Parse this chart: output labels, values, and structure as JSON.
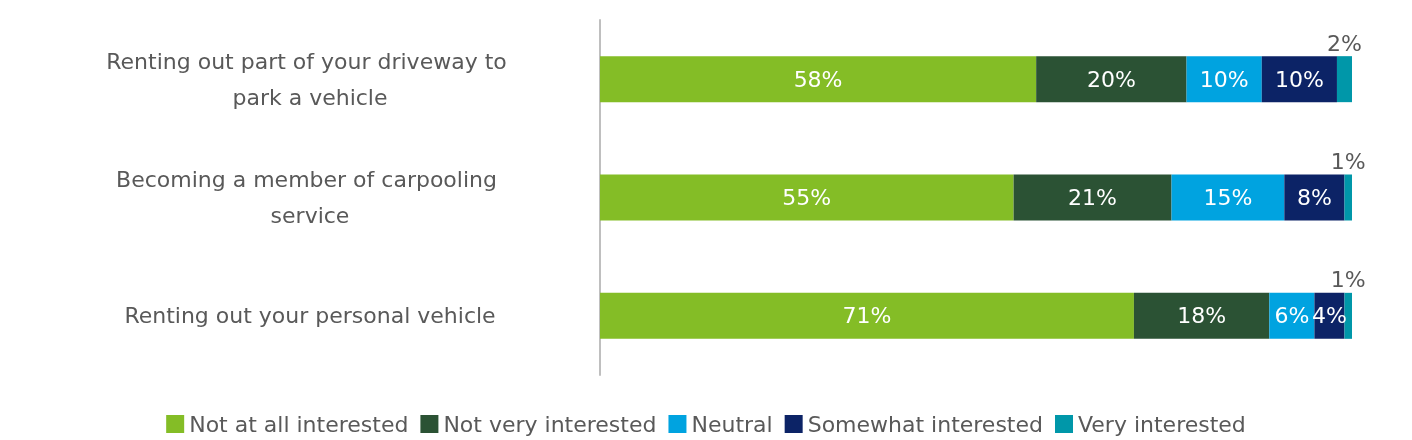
{
  "chart_data": {
    "type": "bar",
    "orientation": "horizontal",
    "stacked": true,
    "grid": false,
    "legend": "bottom",
    "tick_labels": "y",
    "categories": [
      "Renting out part of your driveway to park a vehicle",
      "Becoming a member of carpooling service",
      "Renting out your personal vehicle"
    ],
    "series": [
      {
        "name": "Not at all interested",
        "color": "#84bd26",
        "values": [
          58,
          55,
          71
        ],
        "value_labels": [
          "58%",
          "55%",
          "71%"
        ]
      },
      {
        "name": "Not very interested",
        "color": "#2b5234",
        "values": [
          20,
          21,
          18
        ],
        "value_labels": [
          "20%",
          "21%",
          "18%"
        ]
      },
      {
        "name": "Neutral",
        "color": "#00a3e0",
        "values": [
          10,
          15,
          6
        ],
        "value_labels": [
          "10%",
          "15%",
          "6%"
        ]
      },
      {
        "name": "Somewhat interested",
        "color": "#0c2366",
        "values": [
          10,
          8,
          4
        ],
        "value_labels": [
          "10%",
          "8%",
          "4%"
        ]
      },
      {
        "name": "Very interested",
        "color": "#0097a9",
        "values": [
          2,
          1,
          1
        ],
        "value_labels": [
          "2%",
          "1%",
          "1%"
        ]
      }
    ]
  }
}
